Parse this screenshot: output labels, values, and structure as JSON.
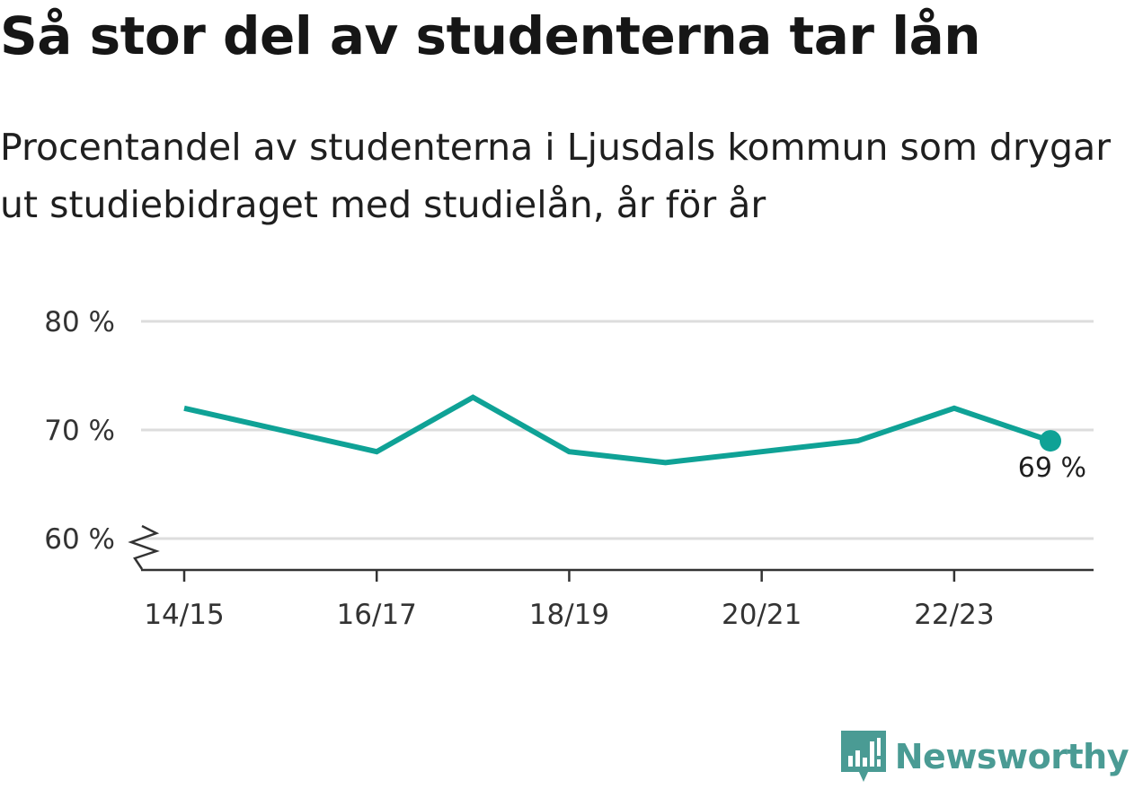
{
  "title": "Så stor del av studenterna tar lån",
  "subtitle": "Procentandel av studenterna i Ljusdals kommun som drygar ut studiebidraget med studielån, år för år",
  "brand": {
    "name": "Newsworthy",
    "color": "#4a9b94"
  },
  "colors": {
    "line": "#0fa296",
    "grid": "#dddddd",
    "axis": "#333333"
  },
  "chart_data": {
    "type": "line",
    "x": [
      "14/15",
      "15/16",
      "16/17",
      "17/18",
      "18/19",
      "19/20",
      "20/21",
      "21/22",
      "22/23",
      "23/24"
    ],
    "x_tick_labels": [
      "14/15",
      "16/17",
      "18/19",
      "20/21",
      "22/23"
    ],
    "series": [
      {
        "values": [
          72,
          70,
          68,
          73,
          68,
          67,
          68,
          69,
          72,
          69
        ]
      }
    ],
    "ylim": [
      57,
      80
    ],
    "y_ticks": [
      60,
      70,
      80
    ],
    "y_tick_labels": [
      "60 %",
      "70 %",
      "80 %"
    ],
    "y_axis_break": true,
    "grid": true,
    "end_label": "69 %"
  }
}
